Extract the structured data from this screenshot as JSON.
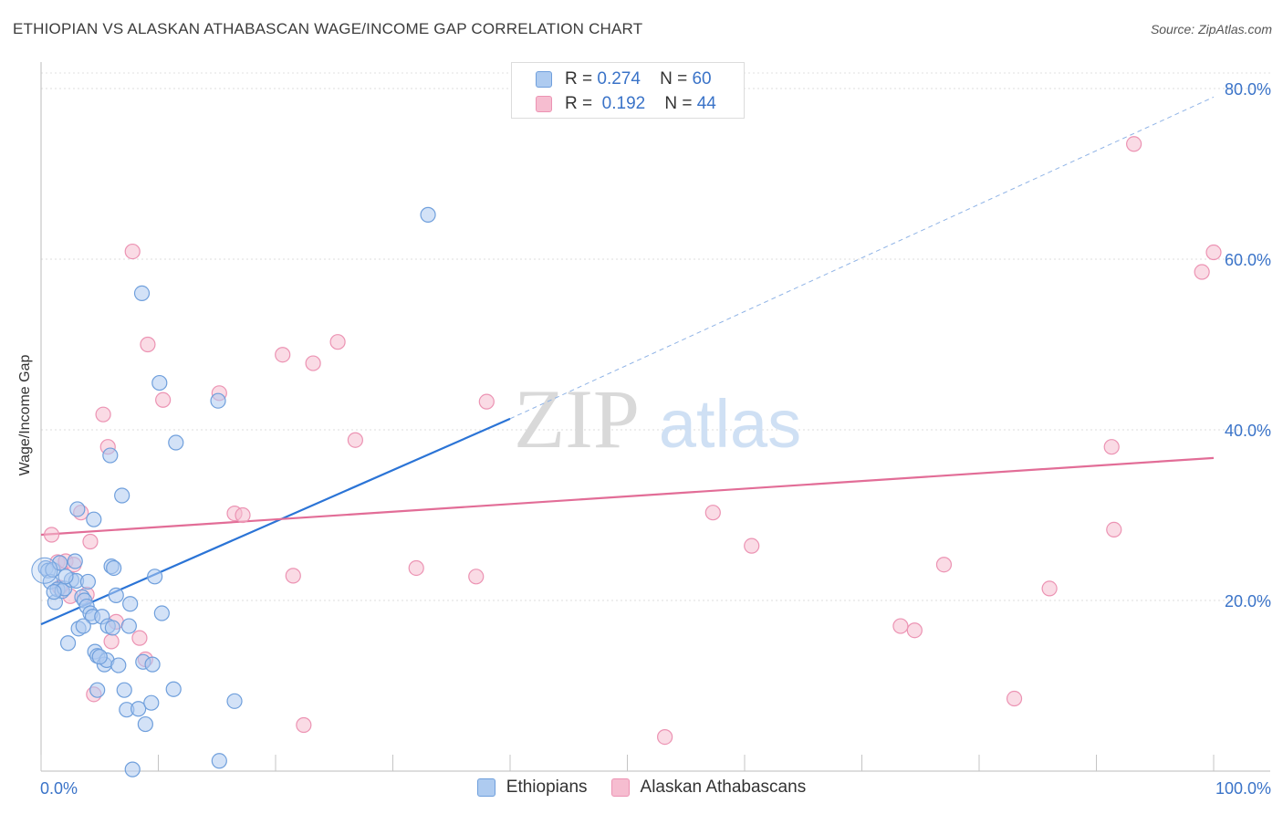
{
  "title": "ETHIOPIAN VS ALASKAN ATHABASCAN WAGE/INCOME GAP CORRELATION CHART",
  "source": "Source: ZipAtlas.com",
  "watermark": {
    "zip": "ZIP",
    "atlas": "atlas"
  },
  "legend": {
    "r_label": "R =",
    "n_label": "N =",
    "rows": [
      {
        "r": "0.274",
        "n": "60"
      },
      {
        "r": "0.192",
        "n": "44"
      }
    ]
  },
  "chart_data": {
    "type": "scatter",
    "title": "ETHIOPIAN VS ALASKAN ATHABASCAN WAGE/INCOME GAP CORRELATION CHART",
    "xlabel": "",
    "ylabel": "Wage/Income Gap",
    "xlim": [
      0,
      100
    ],
    "ylim": [
      0,
      80
    ],
    "x_tick_labels": [
      {
        "value": 0,
        "label": "0.0%"
      },
      {
        "value": 100,
        "label": "100.0%"
      }
    ],
    "y_tick_labels": [
      {
        "value": 20,
        "label": "20.0%"
      },
      {
        "value": 40,
        "label": "40.0%"
      },
      {
        "value": 60,
        "label": "60.0%"
      },
      {
        "value": 80,
        "label": "80.0%"
      }
    ],
    "grid": true,
    "legend_position": "top-center",
    "colors": {
      "ethiopians_fill": "#aecbf0",
      "ethiopians_stroke": "#6f9fdc",
      "ethiopians_line": "#2b74d6",
      "alaskan_fill": "#f6bdd0",
      "alaskan_stroke": "#ec93b3",
      "alaskan_line": "#e26d97"
    },
    "series": [
      {
        "name": "Ethiopians",
        "trend": {
          "x0": 0,
          "y0": 17.2,
          "x1": 40,
          "y1": 41.3,
          "dashed_to_x": 100,
          "dashed_to_y": 79.0
        },
        "points": [
          [
            0.4,
            23.8
          ],
          [
            0.6,
            23.5
          ],
          [
            0.8,
            22.2
          ],
          [
            1.0,
            23.6
          ],
          [
            1.2,
            19.8
          ],
          [
            1.4,
            21.3
          ],
          [
            1.6,
            24.4
          ],
          [
            1.8,
            21.1
          ],
          [
            2.0,
            21.4
          ],
          [
            2.3,
            15.0
          ],
          [
            2.6,
            22.4
          ],
          [
            2.9,
            24.6
          ],
          [
            3.0,
            22.3
          ],
          [
            3.1,
            30.7
          ],
          [
            3.2,
            16.7
          ],
          [
            3.5,
            20.4
          ],
          [
            3.7,
            20.0
          ],
          [
            3.9,
            19.3
          ],
          [
            4.0,
            22.2
          ],
          [
            4.2,
            18.5
          ],
          [
            4.4,
            18.1
          ],
          [
            4.5,
            29.5
          ],
          [
            4.6,
            14.0
          ],
          [
            4.8,
            13.5
          ],
          [
            4.8,
            9.5
          ],
          [
            5.2,
            18.1
          ],
          [
            5.4,
            12.5
          ],
          [
            5.6,
            13.0
          ],
          [
            5.7,
            17.0
          ],
          [
            5.9,
            37.0
          ],
          [
            6.0,
            24.0
          ],
          [
            6.2,
            23.8
          ],
          [
            6.4,
            20.6
          ],
          [
            6.6,
            12.4
          ],
          [
            6.9,
            32.3
          ],
          [
            7.1,
            9.5
          ],
          [
            7.3,
            7.2
          ],
          [
            7.5,
            17.0
          ],
          [
            7.6,
            19.6
          ],
          [
            7.8,
            0.2
          ],
          [
            8.3,
            7.3
          ],
          [
            8.6,
            56.0
          ],
          [
            8.7,
            12.8
          ],
          [
            8.9,
            5.5
          ],
          [
            9.4,
            8.0
          ],
          [
            9.5,
            12.5
          ],
          [
            9.7,
            22.8
          ],
          [
            10.1,
            45.5
          ],
          [
            10.3,
            18.5
          ],
          [
            11.5,
            38.5
          ],
          [
            11.3,
            9.6
          ],
          [
            15.1,
            43.4
          ],
          [
            15.2,
            1.2
          ],
          [
            16.5,
            8.2
          ],
          [
            33.0,
            65.2
          ],
          [
            1.1,
            21.0
          ],
          [
            2.1,
            22.8
          ],
          [
            5.0,
            13.4
          ],
          [
            3.6,
            17.0
          ],
          [
            6.1,
            16.8
          ]
        ]
      },
      {
        "name": "Alaskan Athabascans",
        "trend": {
          "x0": 0,
          "y0": 27.7,
          "x1": 100,
          "y1": 36.7
        },
        "points": [
          [
            0.9,
            27.7
          ],
          [
            1.4,
            24.5
          ],
          [
            1.6,
            21.5
          ],
          [
            2.1,
            24.6
          ],
          [
            2.5,
            20.5
          ],
          [
            2.8,
            24.2
          ],
          [
            3.4,
            30.3
          ],
          [
            3.9,
            20.7
          ],
          [
            4.2,
            26.9
          ],
          [
            4.5,
            9.0
          ],
          [
            5.3,
            41.8
          ],
          [
            5.7,
            38.0
          ],
          [
            6.0,
            15.2
          ],
          [
            6.4,
            17.5
          ],
          [
            7.8,
            60.9
          ],
          [
            8.4,
            15.6
          ],
          [
            8.9,
            13.1
          ],
          [
            9.1,
            50.0
          ],
          [
            10.4,
            43.5
          ],
          [
            15.2,
            44.3
          ],
          [
            16.5,
            30.2
          ],
          [
            17.2,
            30.0
          ],
          [
            20.6,
            48.8
          ],
          [
            21.5,
            22.9
          ],
          [
            22.4,
            5.4
          ],
          [
            23.2,
            47.8
          ],
          [
            25.3,
            50.3
          ],
          [
            26.8,
            38.8
          ],
          [
            32.0,
            23.8
          ],
          [
            37.1,
            22.8
          ],
          [
            38.0,
            43.3
          ],
          [
            53.2,
            4.0
          ],
          [
            57.3,
            30.3
          ],
          [
            60.6,
            26.4
          ],
          [
            73.3,
            17.0
          ],
          [
            74.5,
            16.5
          ],
          [
            77.0,
            24.2
          ],
          [
            83.0,
            8.5
          ],
          [
            86.0,
            21.4
          ],
          [
            91.3,
            38.0
          ],
          [
            91.5,
            28.3
          ],
          [
            93.2,
            73.5
          ],
          [
            100.0,
            60.8
          ],
          [
            99.0,
            58.5
          ]
        ]
      }
    ]
  },
  "bottom_legend": [
    {
      "label": "Ethiopians"
    },
    {
      "label": "Alaskan Athabascans"
    }
  ]
}
